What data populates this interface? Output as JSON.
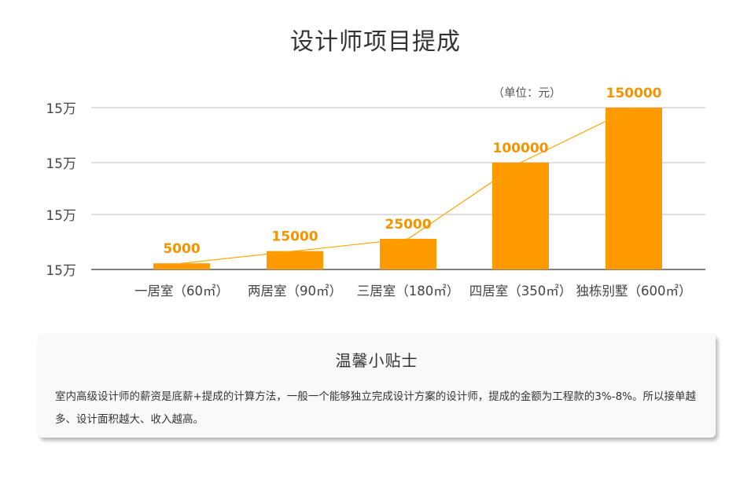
{
  "title": "设计师项目提成",
  "chart_data": {
    "type": "bar",
    "title": "设计师项目提成",
    "unit_note": "（单位：元）",
    "categories": [
      "一居室（60㎡）",
      "两居室（90㎡）",
      "三居室（180㎡）",
      "四居室（350㎡）",
      "独栋别墅（600㎡）"
    ],
    "values": [
      5000,
      15000,
      25000,
      100000,
      150000
    ],
    "data_labels": [
      "5000",
      "15000",
      "25000",
      "100000",
      "150000"
    ],
    "y_tick_labels": [
      "15万",
      "15万",
      "15万",
      "15万"
    ],
    "grid": true,
    "trend_line": true,
    "bar_color": "#ff9900",
    "label_color": "#f29400",
    "line_color": "#f7a800"
  },
  "tips": {
    "title": "温馨小贴士",
    "text": "室内高级设计师的薪资是底薪+提成的计算方法，一般一个能够独立完成设计方案的设计师，提成的金额为工程款的3%-8%。所以接单越多、设计面积越大、收入越高。"
  }
}
